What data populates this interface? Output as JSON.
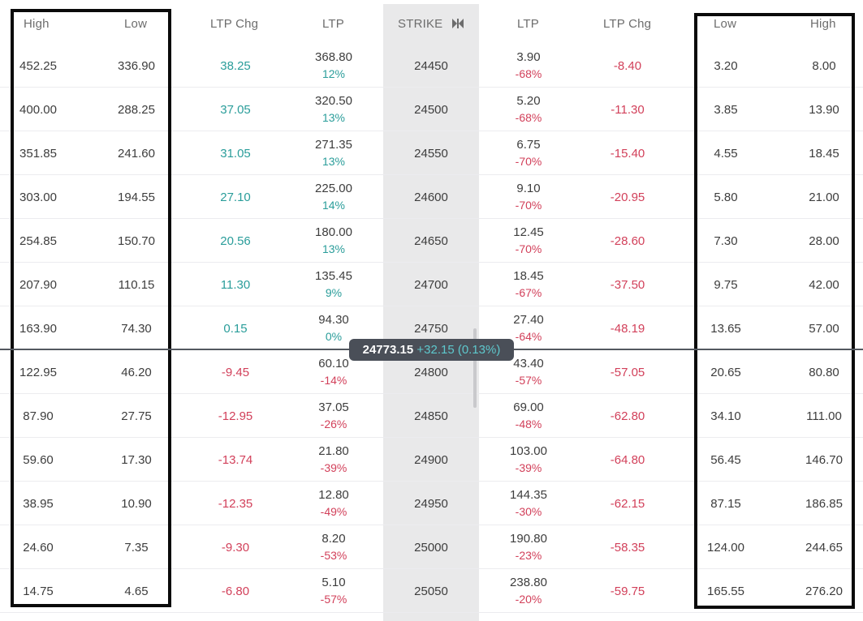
{
  "header": {
    "call_high": "High",
    "call_low": "Low",
    "call_ltp_chg": "LTP Chg",
    "call_ltp": "LTP",
    "strike": "STRIKE",
    "put_ltp": "LTP",
    "put_ltp_chg": "LTP Chg",
    "put_low": "Low",
    "put_high": "High"
  },
  "spot": {
    "price": "24773.15",
    "change": "+32.15 (0.13%)"
  },
  "rows": [
    {
      "call_high": "452.25",
      "call_low": "336.90",
      "call_ltp_chg": "38.25",
      "call_ltp": "368.80",
      "call_ltp_pct": "12%",
      "strike": "24450",
      "put_ltp": "3.90",
      "put_ltp_pct": "-68%",
      "put_ltp_chg": "-8.40",
      "put_low": "3.20",
      "put_high": "8.00",
      "call_dir": "pos",
      "put_dir": "neg"
    },
    {
      "call_high": "400.00",
      "call_low": "288.25",
      "call_ltp_chg": "37.05",
      "call_ltp": "320.50",
      "call_ltp_pct": "13%",
      "strike": "24500",
      "put_ltp": "5.20",
      "put_ltp_pct": "-68%",
      "put_ltp_chg": "-11.30",
      "put_low": "3.85",
      "put_high": "13.90",
      "call_dir": "pos",
      "put_dir": "neg"
    },
    {
      "call_high": "351.85",
      "call_low": "241.60",
      "call_ltp_chg": "31.05",
      "call_ltp": "271.35",
      "call_ltp_pct": "13%",
      "strike": "24550",
      "put_ltp": "6.75",
      "put_ltp_pct": "-70%",
      "put_ltp_chg": "-15.40",
      "put_low": "4.55",
      "put_high": "18.45",
      "call_dir": "pos",
      "put_dir": "neg"
    },
    {
      "call_high": "303.00",
      "call_low": "194.55",
      "call_ltp_chg": "27.10",
      "call_ltp": "225.00",
      "call_ltp_pct": "14%",
      "strike": "24600",
      "put_ltp": "9.10",
      "put_ltp_pct": "-70%",
      "put_ltp_chg": "-20.95",
      "put_low": "5.80",
      "put_high": "21.00",
      "call_dir": "pos",
      "put_dir": "neg"
    },
    {
      "call_high": "254.85",
      "call_low": "150.70",
      "call_ltp_chg": "20.56",
      "call_ltp": "180.00",
      "call_ltp_pct": "13%",
      "strike": "24650",
      "put_ltp": "12.45",
      "put_ltp_pct": "-70%",
      "put_ltp_chg": "-28.60",
      "put_low": "7.30",
      "put_high": "28.00",
      "call_dir": "pos",
      "put_dir": "neg"
    },
    {
      "call_high": "207.90",
      "call_low": "110.15",
      "call_ltp_chg": "11.30",
      "call_ltp": "135.45",
      "call_ltp_pct": "9%",
      "strike": "24700",
      "put_ltp": "18.45",
      "put_ltp_pct": "-67%",
      "put_ltp_chg": "-37.50",
      "put_low": "9.75",
      "put_high": "42.00",
      "call_dir": "pos",
      "put_dir": "neg"
    },
    {
      "call_high": "163.90",
      "call_low": "74.30",
      "call_ltp_chg": "0.15",
      "call_ltp": "94.30",
      "call_ltp_pct": "0%",
      "strike": "24750",
      "put_ltp": "27.40",
      "put_ltp_pct": "-64%",
      "put_ltp_chg": "-48.19",
      "put_low": "13.65",
      "put_high": "57.00",
      "call_dir": "pos",
      "put_dir": "neg"
    },
    {
      "call_high": "122.95",
      "call_low": "46.20",
      "call_ltp_chg": "-9.45",
      "call_ltp": "60.10",
      "call_ltp_pct": "-14%",
      "strike": "24800",
      "put_ltp": "43.40",
      "put_ltp_pct": "-57%",
      "put_ltp_chg": "-57.05",
      "put_low": "20.65",
      "put_high": "80.80",
      "call_dir": "neg",
      "put_dir": "neg"
    },
    {
      "call_high": "87.90",
      "call_low": "27.75",
      "call_ltp_chg": "-12.95",
      "call_ltp": "37.05",
      "call_ltp_pct": "-26%",
      "strike": "24850",
      "put_ltp": "69.00",
      "put_ltp_pct": "-48%",
      "put_ltp_chg": "-62.80",
      "put_low": "34.10",
      "put_high": "111.00",
      "call_dir": "neg",
      "put_dir": "neg"
    },
    {
      "call_high": "59.60",
      "call_low": "17.30",
      "call_ltp_chg": "-13.74",
      "call_ltp": "21.80",
      "call_ltp_pct": "-39%",
      "strike": "24900",
      "put_ltp": "103.00",
      "put_ltp_pct": "-39%",
      "put_ltp_chg": "-64.80",
      "put_low": "56.45",
      "put_high": "146.70",
      "call_dir": "neg",
      "put_dir": "neg"
    },
    {
      "call_high": "38.95",
      "call_low": "10.90",
      "call_ltp_chg": "-12.35",
      "call_ltp": "12.80",
      "call_ltp_pct": "-49%",
      "strike": "24950",
      "put_ltp": "144.35",
      "put_ltp_pct": "-30%",
      "put_ltp_chg": "-62.15",
      "put_low": "87.15",
      "put_high": "186.85",
      "call_dir": "neg",
      "put_dir": "neg"
    },
    {
      "call_high": "24.60",
      "call_low": "7.35",
      "call_ltp_chg": "-9.30",
      "call_ltp": "8.20",
      "call_ltp_pct": "-53%",
      "strike": "25000",
      "put_ltp": "190.80",
      "put_ltp_pct": "-23%",
      "put_ltp_chg": "-58.35",
      "put_low": "124.00",
      "put_high": "244.65",
      "call_dir": "neg",
      "put_dir": "neg"
    },
    {
      "call_high": "14.75",
      "call_low": "4.65",
      "call_ltp_chg": "-6.80",
      "call_ltp": "5.10",
      "call_ltp_pct": "-57%",
      "strike": "25050",
      "put_ltp": "238.80",
      "put_ltp_pct": "-20%",
      "put_ltp_chg": "-59.75",
      "put_low": "165.55",
      "put_high": "276.20",
      "call_dir": "neg",
      "put_dir": "neg"
    }
  ],
  "colors": {
    "positive": "#2a9d9a",
    "negative": "#d2405a",
    "strike_column_bg": "#e9e9ea",
    "spot_badge_bg": "#4a4f58",
    "highlight_box": "#0a0a0a"
  },
  "icons": {
    "strike_header": "column-toggle-icon"
  }
}
